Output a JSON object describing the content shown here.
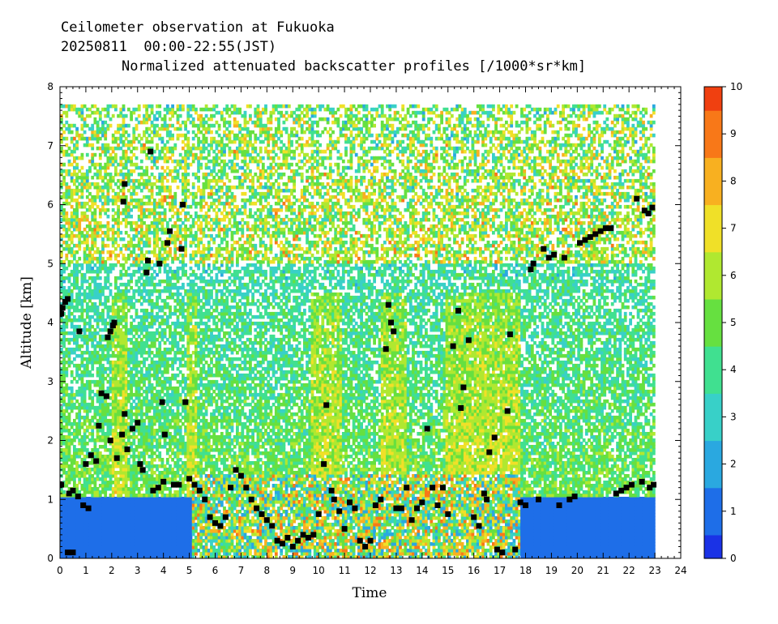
{
  "titles": {
    "line1": "Ceilometer observation at Fukuoka",
    "line2": "20250811  00:00-22:55(JST)",
    "line3": "Normalized attenuated backscatter profiles [/1000*sr*km]"
  },
  "chart_data": {
    "type": "heatmap",
    "xlabel": "Time",
    "ylabel": "Altitude [km]",
    "xlim": [
      0,
      24
    ],
    "ylim": [
      0,
      8
    ],
    "x_ticks": [
      "0",
      "1",
      "2",
      "3",
      "4",
      "5",
      "6",
      "7",
      "8",
      "9",
      "10",
      "11",
      "12",
      "13",
      "14",
      "15",
      "16",
      "17",
      "18",
      "19",
      "20",
      "21",
      "22",
      "23",
      "24"
    ],
    "y_ticks": [
      "0",
      "1",
      "2",
      "3",
      "4",
      "5",
      "6",
      "7",
      "8"
    ],
    "colorbar": {
      "range": [
        0,
        10
      ],
      "ticks": [
        "0",
        "1",
        "2",
        "3",
        "4",
        "5",
        "6",
        "7",
        "8",
        "9",
        "10"
      ],
      "colors": [
        "#1a32e6",
        "#1e6ee8",
        "#2aa8e0",
        "#38d0c8",
        "#40e090",
        "#66e040",
        "#b0e830",
        "#f0e028",
        "#f8b020",
        "#f87818",
        "#f04010"
      ]
    },
    "data_extent_time": [
      0,
      22.92
    ],
    "data_extent_altitude": [
      0,
      7.65
    ],
    "cloud_base_series": {
      "name": "",
      "marker": "black square",
      "points": [
        [
          0.05,
          4.15
        ],
        [
          0.1,
          4.25
        ],
        [
          0.2,
          4.35
        ],
        [
          0.3,
          4.4
        ],
        [
          0.05,
          1.25
        ],
        [
          0.35,
          1.1
        ],
        [
          0.5,
          1.15
        ],
        [
          0.7,
          1.05
        ],
        [
          0.9,
          0.9
        ],
        [
          1.1,
          0.85
        ],
        [
          0.75,
          3.85
        ],
        [
          0.3,
          0.1
        ],
        [
          0.5,
          0.1
        ],
        [
          1.0,
          1.6
        ],
        [
          1.2,
          1.75
        ],
        [
          1.4,
          1.65
        ],
        [
          1.5,
          2.25
        ],
        [
          1.6,
          2.8
        ],
        [
          1.8,
          2.75
        ],
        [
          1.95,
          2.0
        ],
        [
          1.85,
          3.75
        ],
        [
          1.95,
          3.85
        ],
        [
          2.05,
          3.95
        ],
        [
          2.1,
          4.0
        ],
        [
          2.2,
          1.7
        ],
        [
          2.4,
          2.1
        ],
        [
          2.5,
          2.45
        ],
        [
          2.45,
          6.05
        ],
        [
          2.5,
          6.35
        ],
        [
          2.6,
          1.85
        ],
        [
          2.8,
          2.2
        ],
        [
          3.0,
          2.3
        ],
        [
          3.1,
          1.6
        ],
        [
          3.2,
          1.5
        ],
        [
          3.35,
          4.85
        ],
        [
          3.4,
          5.05
        ],
        [
          3.5,
          6.9
        ],
        [
          3.6,
          1.15
        ],
        [
          3.8,
          1.2
        ],
        [
          3.95,
          2.65
        ],
        [
          3.85,
          5.0
        ],
        [
          4.0,
          1.3
        ],
        [
          4.05,
          2.1
        ],
        [
          4.15,
          5.35
        ],
        [
          4.25,
          5.55
        ],
        [
          4.4,
          1.25
        ],
        [
          4.6,
          1.25
        ],
        [
          4.7,
          5.25
        ],
        [
          4.75,
          6.0
        ],
        [
          4.85,
          2.65
        ],
        [
          5.0,
          1.35
        ],
        [
          5.2,
          1.25
        ],
        [
          5.4,
          1.15
        ],
        [
          5.6,
          1.0
        ],
        [
          5.8,
          0.7
        ],
        [
          6.0,
          0.6
        ],
        [
          6.2,
          0.55
        ],
        [
          6.4,
          0.7
        ],
        [
          6.6,
          1.2
        ],
        [
          6.8,
          1.5
        ],
        [
          7.0,
          1.4
        ],
        [
          7.2,
          1.2
        ],
        [
          7.4,
          1.0
        ],
        [
          7.6,
          0.85
        ],
        [
          7.8,
          0.75
        ],
        [
          8.0,
          0.65
        ],
        [
          8.2,
          0.55
        ],
        [
          8.4,
          0.3
        ],
        [
          8.6,
          0.25
        ],
        [
          8.8,
          0.35
        ],
        [
          9.0,
          0.2
        ],
        [
          9.2,
          0.3
        ],
        [
          9.4,
          0.4
        ],
        [
          9.6,
          0.35
        ],
        [
          9.8,
          0.4
        ],
        [
          10.0,
          0.75
        ],
        [
          10.2,
          1.6
        ],
        [
          10.3,
          2.6
        ],
        [
          10.5,
          1.15
        ],
        [
          10.6,
          1.0
        ],
        [
          10.8,
          0.8
        ],
        [
          11.0,
          0.5
        ],
        [
          11.2,
          0.95
        ],
        [
          11.4,
          0.85
        ],
        [
          11.6,
          0.3
        ],
        [
          11.8,
          0.2
        ],
        [
          12.0,
          0.3
        ],
        [
          12.2,
          0.9
        ],
        [
          12.4,
          1.0
        ],
        [
          12.6,
          3.55
        ],
        [
          12.7,
          4.3
        ],
        [
          12.8,
          4.0
        ],
        [
          12.9,
          3.85
        ],
        [
          13.0,
          0.85
        ],
        [
          13.2,
          0.85
        ],
        [
          13.4,
          1.2
        ],
        [
          13.6,
          0.65
        ],
        [
          13.8,
          0.85
        ],
        [
          14.0,
          0.95
        ],
        [
          14.2,
          2.2
        ],
        [
          14.4,
          1.2
        ],
        [
          14.6,
          0.9
        ],
        [
          14.8,
          1.2
        ],
        [
          15.0,
          0.75
        ],
        [
          15.2,
          3.6
        ],
        [
          15.4,
          4.2
        ],
        [
          15.5,
          2.55
        ],
        [
          15.6,
          2.9
        ],
        [
          15.8,
          3.7
        ],
        [
          16.0,
          0.7
        ],
        [
          16.2,
          0.55
        ],
        [
          16.4,
          1.1
        ],
        [
          16.5,
          1.0
        ],
        [
          16.6,
          1.8
        ],
        [
          16.8,
          2.05
        ],
        [
          16.9,
          0.15
        ],
        [
          17.1,
          0.1
        ],
        [
          17.3,
          2.5
        ],
        [
          17.4,
          3.8
        ],
        [
          17.6,
          0.15
        ],
        [
          17.8,
          0.95
        ],
        [
          18.0,
          0.9
        ],
        [
          18.2,
          4.9
        ],
        [
          18.3,
          5.0
        ],
        [
          18.5,
          1.0
        ],
        [
          18.7,
          5.25
        ],
        [
          18.9,
          5.1
        ],
        [
          19.1,
          5.15
        ],
        [
          19.3,
          0.9
        ],
        [
          19.5,
          5.1
        ],
        [
          19.7,
          1.0
        ],
        [
          19.9,
          1.05
        ],
        [
          20.1,
          5.35
        ],
        [
          20.3,
          5.4
        ],
        [
          20.5,
          5.45
        ],
        [
          20.7,
          5.5
        ],
        [
          20.9,
          5.55
        ],
        [
          21.1,
          5.6
        ],
        [
          21.3,
          5.6
        ],
        [
          21.5,
          1.1
        ],
        [
          21.7,
          1.15
        ],
        [
          21.9,
          1.2
        ],
        [
          22.1,
          1.25
        ],
        [
          22.3,
          6.1
        ],
        [
          22.5,
          1.3
        ],
        [
          22.6,
          5.9
        ],
        [
          22.75,
          5.85
        ],
        [
          22.9,
          5.95
        ],
        [
          22.95,
          1.25
        ],
        [
          22.8,
          1.2
        ]
      ]
    }
  }
}
